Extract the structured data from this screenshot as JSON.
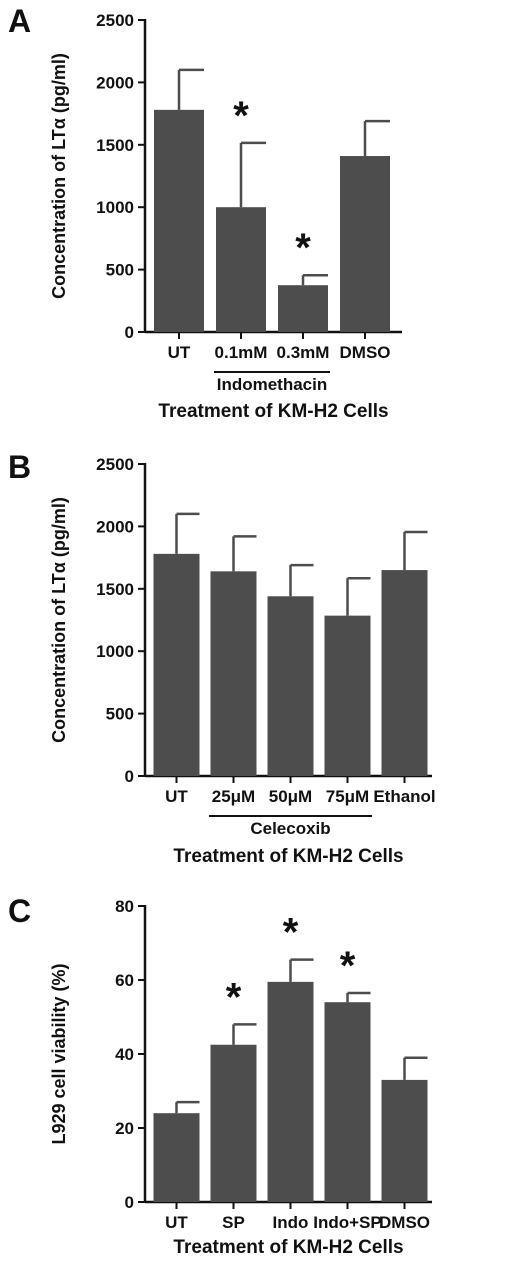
{
  "chart_data": [
    {
      "panel": "A",
      "type": "bar",
      "ylabel": "Concentration of LTα (pg/ml)",
      "xlabel": "Treatment of KM-H2 Cells",
      "ylim": [
        0,
        2500
      ],
      "yticks": [
        0,
        500,
        1000,
        1500,
        2000,
        2500
      ],
      "categories": [
        "UT",
        "0.1mM",
        "0.3mM",
        "DMSO"
      ],
      "values": [
        1780,
        1000,
        375,
        1410
      ],
      "errors": [
        320,
        515,
        80,
        280
      ],
      "significant": [
        false,
        true,
        true,
        false
      ],
      "annotation_text": "*",
      "group_label": {
        "text": "Indomethacin",
        "from": 1,
        "to": 2
      },
      "bar_color": "#4d4d4d"
    },
    {
      "panel": "B",
      "type": "bar",
      "ylabel": "Concentration of LTα (pg/ml)",
      "xlabel": "Treatment of KM-H2 Cells",
      "ylim": [
        0,
        2500
      ],
      "yticks": [
        0,
        500,
        1000,
        1500,
        2000,
        2500
      ],
      "categories": [
        "UT",
        "25μM",
        "50μM",
        "75μM",
        "Ethanol"
      ],
      "values": [
        1780,
        1640,
        1440,
        1285,
        1650
      ],
      "errors": [
        320,
        280,
        250,
        300,
        305
      ],
      "significant": [
        false,
        false,
        false,
        false,
        false
      ],
      "annotation_text": "*",
      "group_label": {
        "text": "Celecoxib",
        "from": 1,
        "to": 3
      },
      "bar_color": "#4d4d4d"
    },
    {
      "panel": "C",
      "type": "bar",
      "ylabel": "L929 cell viability (%)",
      "xlabel": "Treatment of KM-H2 Cells",
      "ylim": [
        0,
        80
      ],
      "yticks": [
        0,
        20,
        40,
        60,
        80
      ],
      "categories": [
        "UT",
        "SP",
        "Indo",
        "Indo+SP",
        "DMSO"
      ],
      "values": [
        24,
        42.5,
        59.5,
        54,
        33
      ],
      "errors": [
        3,
        5.5,
        6,
        2.5,
        6
      ],
      "significant": [
        false,
        true,
        true,
        true,
        false
      ],
      "annotation_text": "*",
      "bar_color": "#4d4d4d"
    }
  ]
}
